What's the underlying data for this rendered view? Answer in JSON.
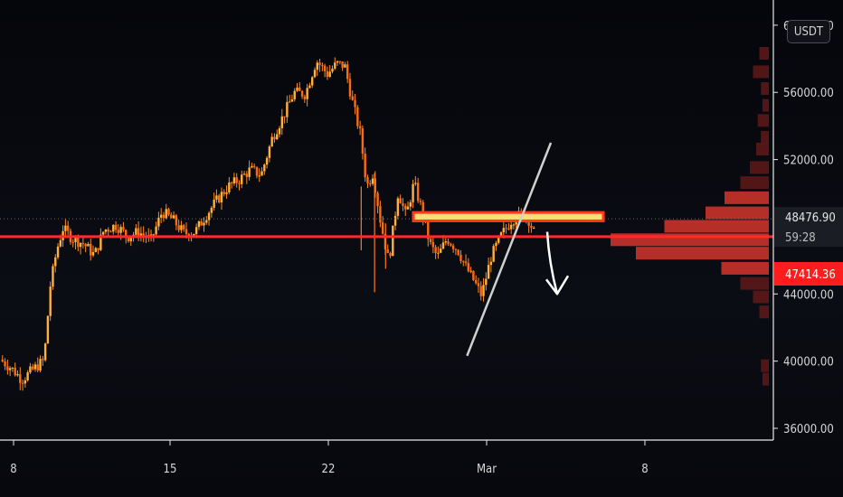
{
  "currency_button": {
    "label": "USDT"
  },
  "chart_data": {
    "type": "candlestick",
    "title": "",
    "xlabel": "",
    "ylabel": "",
    "x_ticks": [
      "8",
      "15",
      "22",
      "Mar",
      "8"
    ],
    "y_ticks": [
      {
        "label": "60000.00",
        "value": 60000
      },
      {
        "label": "56000.00",
        "value": 56000
      },
      {
        "label": "52000.00",
        "value": 52000
      },
      {
        "label": "44000.00",
        "value": 44000
      },
      {
        "label": "40000.00",
        "value": 40000
      },
      {
        "label": "36000.00",
        "value": 36000
      }
    ],
    "ylim": [
      35300,
      61500
    ],
    "price_path": [
      [
        0,
        40100
      ],
      [
        0.7,
        39600
      ],
      [
        1.4,
        38900
      ],
      [
        2.1,
        39500
      ],
      [
        2.8,
        40050
      ],
      [
        3.2,
        44500
      ],
      [
        3.6,
        46600
      ],
      [
        4.0,
        47900
      ],
      [
        4.6,
        47300
      ],
      [
        5.3,
        47000
      ],
      [
        6.0,
        46300
      ],
      [
        6.6,
        47800
      ],
      [
        7.4,
        48100
      ],
      [
        8.1,
        47400
      ],
      [
        8.8,
        47700
      ],
      [
        9.6,
        47200
      ],
      [
        10.3,
        48900
      ],
      [
        11.0,
        48400
      ],
      [
        11.7,
        47600
      ],
      [
        12.4,
        47700
      ],
      [
        13.1,
        48700
      ],
      [
        13.8,
        49600
      ],
      [
        14.5,
        50400
      ],
      [
        15.2,
        50800
      ],
      [
        15.9,
        51400
      ],
      [
        16.6,
        51100
      ],
      [
        17.3,
        53300
      ],
      [
        18.0,
        54600
      ],
      [
        18.7,
        56000
      ],
      [
        19.4,
        55900
      ],
      [
        20.1,
        57900
      ],
      [
        20.8,
        57100
      ],
      [
        21.4,
        57700
      ],
      [
        21.9,
        57600
      ],
      [
        22.4,
        55400
      ],
      [
        22.9,
        53500
      ],
      [
        23.3,
        50400
      ],
      [
        23.7,
        51200
      ],
      [
        24.2,
        48200
      ],
      [
        24.7,
        45900
      ],
      [
        25.3,
        50100
      ],
      [
        25.8,
        48600
      ],
      [
        26.3,
        50600
      ],
      [
        26.8,
        49000
      ],
      [
        27.3,
        47000
      ],
      [
        27.8,
        46200
      ],
      [
        28.4,
        47300
      ],
      [
        29.1,
        46600
      ],
      [
        29.6,
        45600
      ],
      [
        30.1,
        44800
      ],
      [
        30.6,
        43900
      ],
      [
        31.2,
        46200
      ],
      [
        31.8,
        47400
      ],
      [
        32.5,
        48400
      ],
      [
        33.2,
        48800
      ],
      [
        33.6,
        48400
      ],
      [
        34.0,
        47500
      ]
    ],
    "horizontal_line": {
      "value": 47414.36,
      "color": "#ff2a2a"
    },
    "resistance_zone": {
      "low": 48350,
      "high": 48850,
      "color": "#f5e07a"
    },
    "trendline": {
      "from": [
        31.4,
        42200
      ],
      "to": [
        35.0,
        53000
      ],
      "color": "#d0d0d0"
    },
    "arrow_down": {
      "from": [
        35.1,
        47700
      ],
      "to": [
        35.9,
        44000
      ],
      "color": "#ffffff"
    },
    "current_price": {
      "value": 48476.9,
      "label": "48476.90",
      "countdown": "59:28",
      "bg": "#1b1d24"
    },
    "last_price_tag": {
      "value": 47414.36,
      "label": "47414.36",
      "bg": "#ff1c1c"
    },
    "volume_profile": {
      "max_volume": 100,
      "color_high": "#c6322a",
      "color_low": "#5a1818",
      "bins": [
        {
          "price": 58300,
          "volume": 6
        },
        {
          "price": 57200,
          "volume": 10
        },
        {
          "price": 56200,
          "volume": 5
        },
        {
          "price": 55200,
          "volume": 4
        },
        {
          "price": 54300,
          "volume": 7
        },
        {
          "price": 53300,
          "volume": 5
        },
        {
          "price": 52600,
          "volume": 8
        },
        {
          "price": 51500,
          "volume": 12
        },
        {
          "price": 50600,
          "volume": 18
        },
        {
          "price": 49700,
          "volume": 28
        },
        {
          "price": 48800,
          "volume": 40
        },
        {
          "price": 48000,
          "volume": 66
        },
        {
          "price": 47200,
          "volume": 100
        },
        {
          "price": 46400,
          "volume": 84
        },
        {
          "price": 45500,
          "volume": 30
        },
        {
          "price": 44600,
          "volume": 18
        },
        {
          "price": 43800,
          "volume": 10
        },
        {
          "price": 42900,
          "volume": 6
        },
        {
          "price": 39700,
          "volume": 5
        },
        {
          "price": 38900,
          "volume": 4
        }
      ]
    }
  }
}
